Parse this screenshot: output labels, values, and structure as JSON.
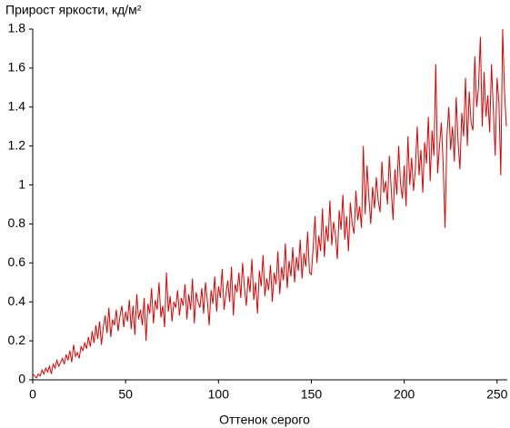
{
  "chart_data": {
    "type": "line",
    "title": "Прирост яркости, кд/м²",
    "x_label": "Оттенок серого",
    "color": "#e00000",
    "xlim": [
      0,
      255
    ],
    "ylim": [
      0,
      1.8
    ],
    "xticks": [
      0,
      50,
      100,
      150,
      200,
      250
    ],
    "yticks": [
      0,
      0.2,
      0.4,
      0.6,
      0.8,
      1,
      1.2,
      1.4,
      1.6,
      1.8
    ],
    "grid": false,
    "values": [
      0.03,
      0.02,
      0.01,
      0.03,
      0.02,
      0.05,
      0.03,
      0.06,
      0.04,
      0.07,
      0.03,
      0.08,
      0.06,
      0.1,
      0.07,
      0.09,
      0.11,
      0.08,
      0.13,
      0.1,
      0.15,
      0.09,
      0.18,
      0.12,
      0.14,
      0.11,
      0.17,
      0.15,
      0.19,
      0.16,
      0.22,
      0.17,
      0.25,
      0.19,
      0.28,
      0.21,
      0.3,
      0.18,
      0.27,
      0.33,
      0.24,
      0.37,
      0.22,
      0.31,
      0.28,
      0.36,
      0.25,
      0.33,
      0.38,
      0.27,
      0.35,
      0.3,
      0.41,
      0.26,
      0.38,
      0.23,
      0.44,
      0.31,
      0.36,
      0.28,
      0.42,
      0.2,
      0.39,
      0.34,
      0.47,
      0.29,
      0.41,
      0.36,
      0.5,
      0.32,
      0.38,
      0.27,
      0.55,
      0.35,
      0.43,
      0.3,
      0.4,
      0.37,
      0.46,
      0.33,
      0.42,
      0.38,
      0.49,
      0.31,
      0.44,
      0.36,
      0.52,
      0.29,
      0.45,
      0.4,
      0.37,
      0.47,
      0.34,
      0.5,
      0.41,
      0.28,
      0.46,
      0.39,
      0.53,
      0.35,
      0.48,
      0.42,
      0.57,
      0.36,
      0.44,
      0.51,
      0.4,
      0.58,
      0.33,
      0.49,
      0.45,
      0.55,
      0.42,
      0.6,
      0.47,
      0.38,
      0.53,
      0.45,
      0.62,
      0.41,
      0.5,
      0.34,
      0.56,
      0.48,
      0.64,
      0.43,
      0.52,
      0.46,
      0.59,
      0.4,
      0.55,
      0.49,
      0.66,
      0.44,
      0.58,
      0.51,
      0.7,
      0.47,
      0.61,
      0.53,
      0.68,
      0.5,
      0.63,
      0.56,
      0.72,
      0.52,
      0.65,
      0.58,
      0.76,
      0.55,
      0.54,
      0.68,
      0.84,
      0.6,
      0.74,
      0.66,
      0.88,
      0.63,
      0.79,
      0.71,
      0.92,
      0.69,
      0.81,
      0.74,
      0.62,
      0.87,
      0.77,
      0.95,
      0.72,
      0.84,
      0.66,
      0.91,
      0.8,
      0.75,
      0.97,
      0.82,
      0.89,
      0.78,
      1.2,
      0.85,
      1.1,
      0.93,
      0.8,
      0.99,
      0.88,
      1.04,
      0.92,
      0.86,
      1.12,
      0.96,
      1.02,
      0.9,
      1.15,
      0.98,
      0.82,
      1.08,
      0.95,
      1.2,
      1.01,
      0.93,
      1.1,
      0.89,
      1.25,
      1.0,
      1.14,
      0.97,
      1.08,
      1.3,
      1.05,
      1.18,
      0.96,
      1.22,
      1.11,
      1.35,
      1.02,
      1.28,
      1.15,
      1.62,
      1.06,
      1.2,
      1.32,
      1.1,
      0.78,
      1.25,
      1.4,
      1.18,
      1.3,
      1.12,
      1.45,
      1.22,
      1.08,
      1.37,
      1.25,
      1.55,
      1.2,
      1.48,
      1.32,
      1.28,
      1.66,
      1.4,
      1.5,
      1.76,
      1.3,
      1.58,
      1.35,
      1.46,
      1.27,
      1.62,
      1.38,
      1.15,
      1.55,
      1.42,
      1.05,
      1.8,
      1.48,
      1.3
    ]
  }
}
